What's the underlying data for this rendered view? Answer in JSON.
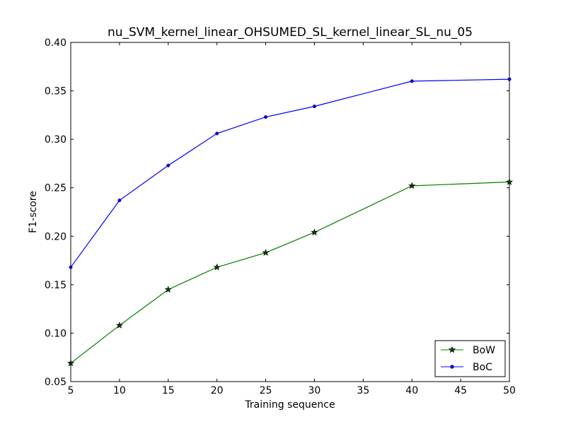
{
  "chart_data": {
    "type": "line",
    "title": "nu_SVM_kernel_linear_OHSUMED_SL_kernel_linear_SL_nu_05",
    "xlabel": "Training sequence",
    "ylabel": "F1-score",
    "xlim": [
      5,
      50
    ],
    "ylim": [
      0.05,
      0.4
    ],
    "xticks": [
      "5",
      "10",
      "15",
      "20",
      "25",
      "30",
      "35",
      "40",
      "45",
      "50"
    ],
    "yticks": [
      "0.05",
      "0.10",
      "0.15",
      "0.20",
      "0.25",
      "0.30",
      "0.35",
      "0.40"
    ],
    "grid": false,
    "legend_position": "lower-right",
    "x": [
      5,
      10,
      15,
      20,
      25,
      30,
      40,
      50
    ],
    "series": [
      {
        "name": "BoW",
        "color": "#008000",
        "marker": "star",
        "values": [
          0.069,
          0.108,
          0.145,
          0.168,
          0.183,
          0.204,
          0.252,
          0.256
        ]
      },
      {
        "name": "BoC",
        "color": "#0000ff",
        "marker": "dot",
        "values": [
          0.168,
          0.237,
          0.273,
          0.306,
          0.323,
          0.334,
          0.36,
          0.362
        ]
      }
    ]
  }
}
